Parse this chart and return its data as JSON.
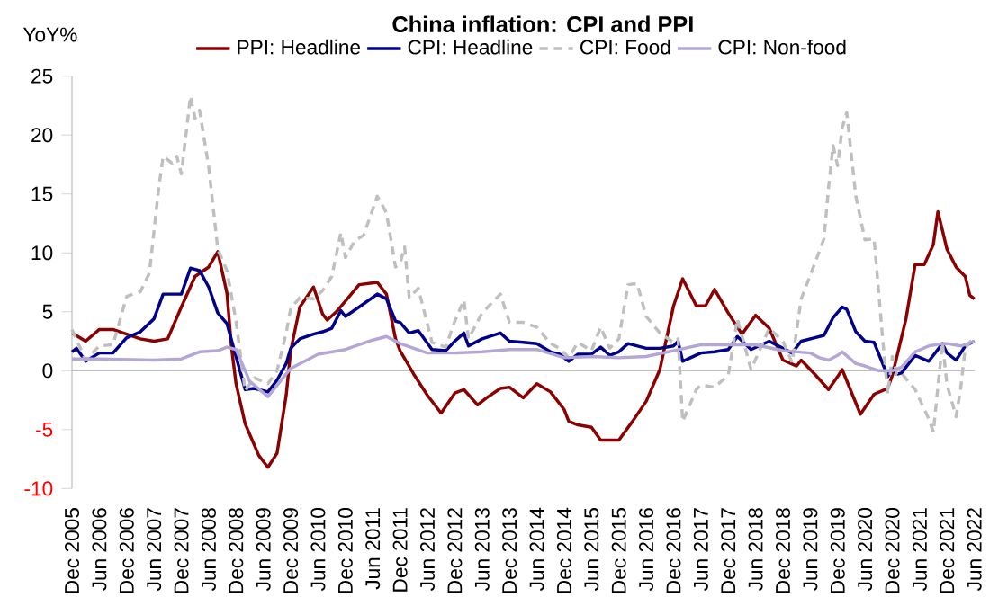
{
  "chart_data": {
    "type": "line",
    "title": "China inflation: CPI and PPI",
    "ylabel": "YoY%",
    "xlim": [
      "2005-12",
      "2022-06"
    ],
    "xticks": [
      {
        "value": "2005-12",
        "label": "Dec 2005"
      },
      {
        "value": "2006-06",
        "label": "Jun 2006"
      },
      {
        "value": "2006-12",
        "label": "Dec 2006"
      },
      {
        "value": "2007-06",
        "label": "Jun 2007"
      },
      {
        "value": "2007-12",
        "label": "Dec 2007"
      },
      {
        "value": "2008-06",
        "label": "Jun 2008"
      },
      {
        "value": "2008-12",
        "label": "Dec 2008"
      },
      {
        "value": "2009-06",
        "label": "Jun 2009"
      },
      {
        "value": "2009-12",
        "label": "Dec 2009"
      },
      {
        "value": "2010-06",
        "label": "Jun 2010"
      },
      {
        "value": "2010-12",
        "label": "Dec 2010"
      },
      {
        "value": "2011-06",
        "label": "Jun 2011"
      },
      {
        "value": "2011-12",
        "label": "Dec 2011"
      },
      {
        "value": "2012-06",
        "label": "Jun 2012"
      },
      {
        "value": "2012-12",
        "label": "Dec 2012"
      },
      {
        "value": "2013-06",
        "label": "Jun 2013"
      },
      {
        "value": "2013-12",
        "label": "Dec 2013"
      },
      {
        "value": "2014-06",
        "label": "Jun 2014"
      },
      {
        "value": "2014-12",
        "label": "Dec 2014"
      },
      {
        "value": "2015-06",
        "label": "Jun 2015"
      },
      {
        "value": "2015-12",
        "label": "Dec 2015"
      },
      {
        "value": "2016-06",
        "label": "Jun 2016"
      },
      {
        "value": "2016-12",
        "label": "Dec 2016"
      },
      {
        "value": "2017-06",
        "label": "Jun 2017"
      },
      {
        "value": "2017-12",
        "label": "Dec 2017"
      },
      {
        "value": "2018-06",
        "label": "Jun 2018"
      },
      {
        "value": "2018-12",
        "label": "Dec 2018"
      },
      {
        "value": "2019-06",
        "label": "Jun 2019"
      },
      {
        "value": "2019-12",
        "label": "Dec 2019"
      },
      {
        "value": "2020-06",
        "label": "Jun 2020"
      },
      {
        "value": "2020-12",
        "label": "Dec 2020"
      },
      {
        "value": "2021-06",
        "label": "Jun 2021"
      },
      {
        "value": "2021-12",
        "label": "Dec 2021"
      },
      {
        "value": "2022-06",
        "label": "Jun 2022"
      }
    ],
    "ylim": [
      -10,
      25
    ],
    "yticks": [
      -10,
      -5,
      0,
      5,
      10,
      15,
      20,
      25
    ],
    "legend": "top",
    "series": [
      {
        "name": "PPI: Headline",
        "color": "#8b0000",
        "x": [
          "2005-12",
          "2006-03",
          "2006-06",
          "2006-09",
          "2006-12",
          "2007-03",
          "2007-06",
          "2007-09",
          "2007-12",
          "2008-03",
          "2008-06",
          "2008-08",
          "2008-10",
          "2008-11",
          "2008-12",
          "2009-02",
          "2009-05",
          "2009-07",
          "2009-09",
          "2009-11",
          "2009-12",
          "2010-02",
          "2010-05",
          "2010-07",
          "2010-08",
          "2010-10",
          "2010-12",
          "2011-03",
          "2011-07",
          "2011-09",
          "2011-11",
          "2011-12",
          "2012-03",
          "2012-06",
          "2012-09",
          "2012-12",
          "2013-02",
          "2013-05",
          "2013-07",
          "2013-10",
          "2013-12",
          "2014-03",
          "2014-06",
          "2014-09",
          "2014-12",
          "2015-01",
          "2015-03",
          "2015-06",
          "2015-08",
          "2015-12",
          "2016-03",
          "2016-06",
          "2016-09",
          "2016-12",
          "2017-02",
          "2017-05",
          "2017-07",
          "2017-09",
          "2017-12",
          "2018-03",
          "2018-06",
          "2018-09",
          "2018-12",
          "2019-03",
          "2019-04",
          "2019-07",
          "2019-10",
          "2019-12",
          "2020-01",
          "2020-05",
          "2020-08",
          "2020-11",
          "2020-12",
          "2021-03",
          "2021-05",
          "2021-07",
          "2021-09",
          "2021-10",
          "2021-12",
          "2022-02",
          "2022-04",
          "2022-05",
          "2022-06"
        ],
        "values": [
          3.2,
          2.5,
          3.5,
          3.5,
          3.1,
          2.7,
          2.5,
          2.7,
          5.4,
          8.0,
          8.8,
          10.1,
          6.6,
          2.0,
          -1.1,
          -4.5,
          -7.2,
          -8.2,
          -7.0,
          -2.1,
          1.7,
          5.4,
          7.1,
          4.8,
          4.3,
          5.0,
          5.9,
          7.3,
          7.5,
          6.5,
          2.7,
          1.7,
          -0.3,
          -2.1,
          -3.6,
          -1.9,
          -1.6,
          -2.9,
          -2.3,
          -1.5,
          -1.4,
          -2.3,
          -1.1,
          -1.8,
          -3.3,
          -4.3,
          -4.6,
          -4.8,
          -5.9,
          -5.9,
          -4.3,
          -2.6,
          0.1,
          5.5,
          7.8,
          5.5,
          5.5,
          6.9,
          4.9,
          3.1,
          4.7,
          3.6,
          0.9,
          0.4,
          0.9,
          -0.3,
          -1.6,
          -0.5,
          0.1,
          -3.7,
          -2.0,
          -1.5,
          -0.4,
          4.4,
          9.0,
          9.0,
          10.7,
          13.5,
          10.3,
          8.8,
          8.0,
          6.4,
          6.1
        ]
      },
      {
        "name": "CPI: Headline",
        "color": "#00008b",
        "x": [
          "2005-12",
          "2006-01",
          "2006-03",
          "2006-06",
          "2006-09",
          "2006-12",
          "2007-03",
          "2007-06",
          "2007-08",
          "2007-10",
          "2007-12",
          "2008-02",
          "2008-04",
          "2008-06",
          "2008-08",
          "2008-10",
          "2008-12",
          "2009-02",
          "2009-04",
          "2009-07",
          "2009-09",
          "2009-11",
          "2009-12",
          "2010-02",
          "2010-05",
          "2010-07",
          "2010-09",
          "2010-11",
          "2010-12",
          "2011-03",
          "2011-07",
          "2011-09",
          "2011-11",
          "2011-12",
          "2012-02",
          "2012-04",
          "2012-07",
          "2012-10",
          "2012-12",
          "2013-02",
          "2013-03",
          "2013-06",
          "2013-10",
          "2013-12",
          "2014-03",
          "2014-06",
          "2014-09",
          "2014-11",
          "2015-01",
          "2015-03",
          "2015-06",
          "2015-08",
          "2015-10",
          "2015-12",
          "2016-02",
          "2016-06",
          "2016-09",
          "2016-12",
          "2017-01",
          "2017-02",
          "2017-06",
          "2017-09",
          "2017-12",
          "2018-02",
          "2018-05",
          "2018-09",
          "2018-12",
          "2019-02",
          "2019-04",
          "2019-07",
          "2019-09",
          "2019-11",
          "2020-01",
          "2020-02",
          "2020-04",
          "2020-06",
          "2020-08",
          "2020-10",
          "2020-11",
          "2020-12",
          "2021-01",
          "2021-02",
          "2021-05",
          "2021-08",
          "2021-11",
          "2021-12",
          "2022-02",
          "2022-04",
          "2022-06"
        ],
        "values": [
          1.6,
          1.9,
          0.8,
          1.5,
          1.5,
          2.8,
          3.3,
          4.4,
          6.5,
          6.5,
          6.5,
          8.7,
          8.5,
          7.1,
          4.9,
          4.0,
          1.2,
          -1.6,
          -1.5,
          -1.8,
          -0.8,
          0.6,
          1.9,
          2.7,
          3.1,
          3.3,
          3.6,
          5.1,
          4.6,
          5.4,
          6.5,
          6.1,
          4.2,
          4.1,
          3.2,
          3.4,
          1.8,
          1.7,
          2.5,
          3.2,
          2.1,
          2.7,
          3.2,
          2.5,
          2.4,
          2.3,
          1.6,
          1.4,
          0.8,
          1.4,
          1.4,
          2.0,
          1.3,
          1.6,
          2.3,
          1.9,
          1.9,
          2.1,
          2.5,
          0.8,
          1.5,
          1.6,
          1.8,
          2.9,
          1.8,
          2.5,
          1.9,
          1.5,
          2.5,
          2.8,
          3.0,
          4.5,
          5.4,
          5.2,
          3.3,
          2.5,
          2.4,
          0.5,
          -0.5,
          0.2,
          -0.3,
          -0.2,
          1.3,
          0.8,
          2.3,
          1.5,
          0.9,
          2.1,
          2.5
        ]
      },
      {
        "name": "CPI: Food",
        "color": "#bfbfbf",
        "line_style": "dashed",
        "x": [
          "2005-12",
          "2006-03",
          "2006-06",
          "2006-09",
          "2006-12",
          "2007-03",
          "2007-05",
          "2007-07",
          "2007-08",
          "2007-10",
          "2007-11",
          "2007-12",
          "2008-02",
          "2008-03",
          "2008-04",
          "2008-06",
          "2008-08",
          "2008-10",
          "2008-12",
          "2009-02",
          "2009-04",
          "2009-07",
          "2009-09",
          "2009-11",
          "2009-12",
          "2010-02",
          "2010-05",
          "2010-07",
          "2010-09",
          "2010-11",
          "2010-12",
          "2011-02",
          "2011-04",
          "2011-07",
          "2011-09",
          "2011-11",
          "2011-12",
          "2012-01",
          "2012-02",
          "2012-04",
          "2012-07",
          "2012-10",
          "2012-12",
          "2013-02",
          "2013-03",
          "2013-06",
          "2013-10",
          "2013-12",
          "2014-03",
          "2014-06",
          "2014-09",
          "2014-11",
          "2015-01",
          "2015-03",
          "2015-06",
          "2015-08",
          "2015-10",
          "2015-12",
          "2016-02",
          "2016-04",
          "2016-06",
          "2016-09",
          "2016-12",
          "2017-01",
          "2017-02",
          "2017-05",
          "2017-06",
          "2017-09",
          "2017-12",
          "2018-02",
          "2018-05",
          "2018-09",
          "2018-12",
          "2019-02",
          "2019-04",
          "2019-07",
          "2019-09",
          "2019-10",
          "2019-11",
          "2019-12",
          "2020-01",
          "2020-02",
          "2020-04",
          "2020-06",
          "2020-08",
          "2020-10",
          "2020-11",
          "2020-12",
          "2021-01",
          "2021-02",
          "2021-05",
          "2021-08",
          "2021-09",
          "2021-11",
          "2021-12",
          "2022-02",
          "2022-03",
          "2022-04",
          "2022-06"
        ],
        "values": [
          3.5,
          0.9,
          2.1,
          2.2,
          6.3,
          6.7,
          8.3,
          15.4,
          18.2,
          17.6,
          18.2,
          16.7,
          23.3,
          21.4,
          22.1,
          17.3,
          10.3,
          8.5,
          4.2,
          -1.7,
          -0.6,
          -1.1,
          0.0,
          3.2,
          5.3,
          6.2,
          6.1,
          6.8,
          8.0,
          11.7,
          9.6,
          11.0,
          11.5,
          14.8,
          13.4,
          8.8,
          9.1,
          10.5,
          6.2,
          7.0,
          2.4,
          2.0,
          4.2,
          6.0,
          2.7,
          4.9,
          6.5,
          4.1,
          4.1,
          3.7,
          2.3,
          1.9,
          1.1,
          2.4,
          1.7,
          3.7,
          1.9,
          2.7,
          7.3,
          7.4,
          4.6,
          3.2,
          2.4,
          2.7,
          -4.3,
          -1.6,
          -1.2,
          -1.4,
          -0.4,
          4.4,
          0.1,
          3.6,
          2.5,
          0.7,
          6.1,
          9.1,
          11.2,
          15.5,
          19.1,
          17.4,
          20.6,
          21.9,
          14.8,
          11.1,
          11.2,
          2.2,
          -2.0,
          1.2,
          -0.3,
          -0.2,
          -1.6,
          -4.1,
          -5.2,
          2.4,
          -1.2,
          -3.9,
          -1.5,
          1.9,
          2.9
        ]
      },
      {
        "name": "CPI: Non-food",
        "color": "#b4a7d6",
        "x": [
          "2005-12",
          "2006-06",
          "2007-06",
          "2007-12",
          "2008-04",
          "2008-08",
          "2008-10",
          "2008-12",
          "2009-03",
          "2009-07",
          "2009-12",
          "2010-06",
          "2010-12",
          "2011-06",
          "2011-09",
          "2011-12",
          "2012-06",
          "2012-12",
          "2013-06",
          "2013-12",
          "2014-06",
          "2014-12",
          "2015-06",
          "2015-12",
          "2016-06",
          "2016-12",
          "2017-06",
          "2017-12",
          "2018-06",
          "2018-12",
          "2019-06",
          "2019-08",
          "2019-10",
          "2019-12",
          "2020-01",
          "2020-04",
          "2020-06",
          "2020-09",
          "2020-12",
          "2021-02",
          "2021-05",
          "2021-08",
          "2021-11",
          "2021-12",
          "2022-03",
          "2022-06"
        ],
        "values": [
          1.0,
          1.0,
          0.9,
          1.0,
          1.6,
          1.7,
          2.0,
          1.8,
          -0.9,
          -2.2,
          0.2,
          1.4,
          1.8,
          2.6,
          2.9,
          2.3,
          1.5,
          1.5,
          1.6,
          1.8,
          1.8,
          1.1,
          1.2,
          1.1,
          1.2,
          1.7,
          2.2,
          2.2,
          2.2,
          1.7,
          1.5,
          1.1,
          0.9,
          1.3,
          1.6,
          0.6,
          0.4,
          0.0,
          0.0,
          0.3,
          1.6,
          2.1,
          2.3,
          2.3,
          2.1,
          2.5
        ]
      }
    ]
  }
}
